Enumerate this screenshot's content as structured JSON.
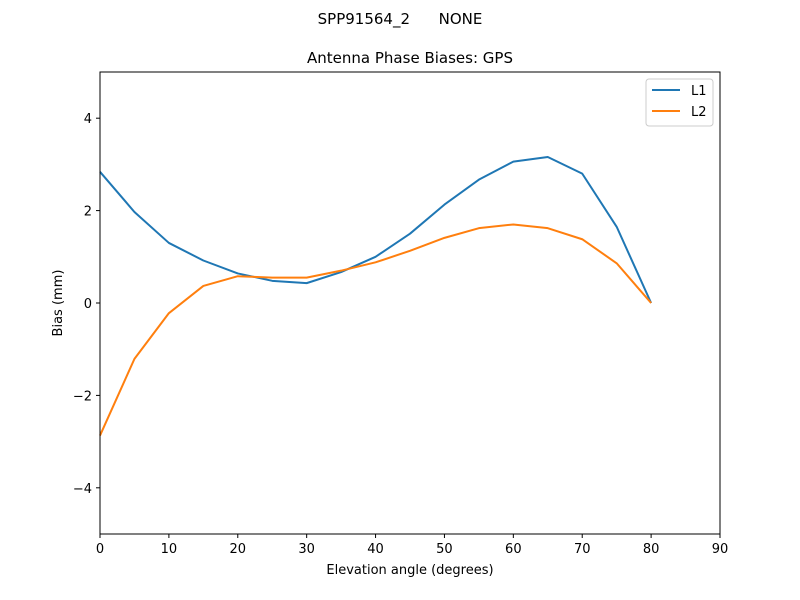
{
  "suptitle": "SPP91564_2      NONE",
  "chart_data": {
    "type": "line",
    "title": "Antenna Phase Biases: GPS",
    "xlabel": "Elevation angle (degrees)",
    "ylabel": "Bias (mm)",
    "xlim": [
      0,
      90
    ],
    "ylim": [
      -5,
      5
    ],
    "xticks": [
      0,
      10,
      20,
      30,
      40,
      50,
      60,
      70,
      80,
      90
    ],
    "yticks": [
      -4,
      -2,
      0,
      2,
      4
    ],
    "xtick_labels": [
      "0",
      "10",
      "20",
      "30",
      "40",
      "50",
      "60",
      "70",
      "80",
      "90"
    ],
    "ytick_labels": [
      "−4",
      "−2",
      "0",
      "2",
      "4"
    ],
    "grid": false,
    "legend_position": "top-right",
    "x": [
      0,
      5,
      10,
      15,
      20,
      25,
      30,
      35,
      40,
      45,
      50,
      55,
      60,
      65,
      70,
      75,
      80
    ],
    "series": [
      {
        "name": "L1",
        "color": "#1f77b4",
        "values": [
          2.84,
          1.97,
          1.3,
          0.92,
          0.64,
          0.48,
          0.43,
          0.67,
          1.0,
          1.5,
          2.13,
          2.67,
          3.06,
          3.16,
          2.8,
          1.65,
          0.0
        ]
      },
      {
        "name": "L2",
        "color": "#ff7f0e",
        "values": [
          -2.87,
          -1.21,
          -0.22,
          0.37,
          0.58,
          0.55,
          0.55,
          0.7,
          0.88,
          1.13,
          1.41,
          1.62,
          1.7,
          1.62,
          1.38,
          0.86,
          0.0
        ]
      }
    ]
  }
}
